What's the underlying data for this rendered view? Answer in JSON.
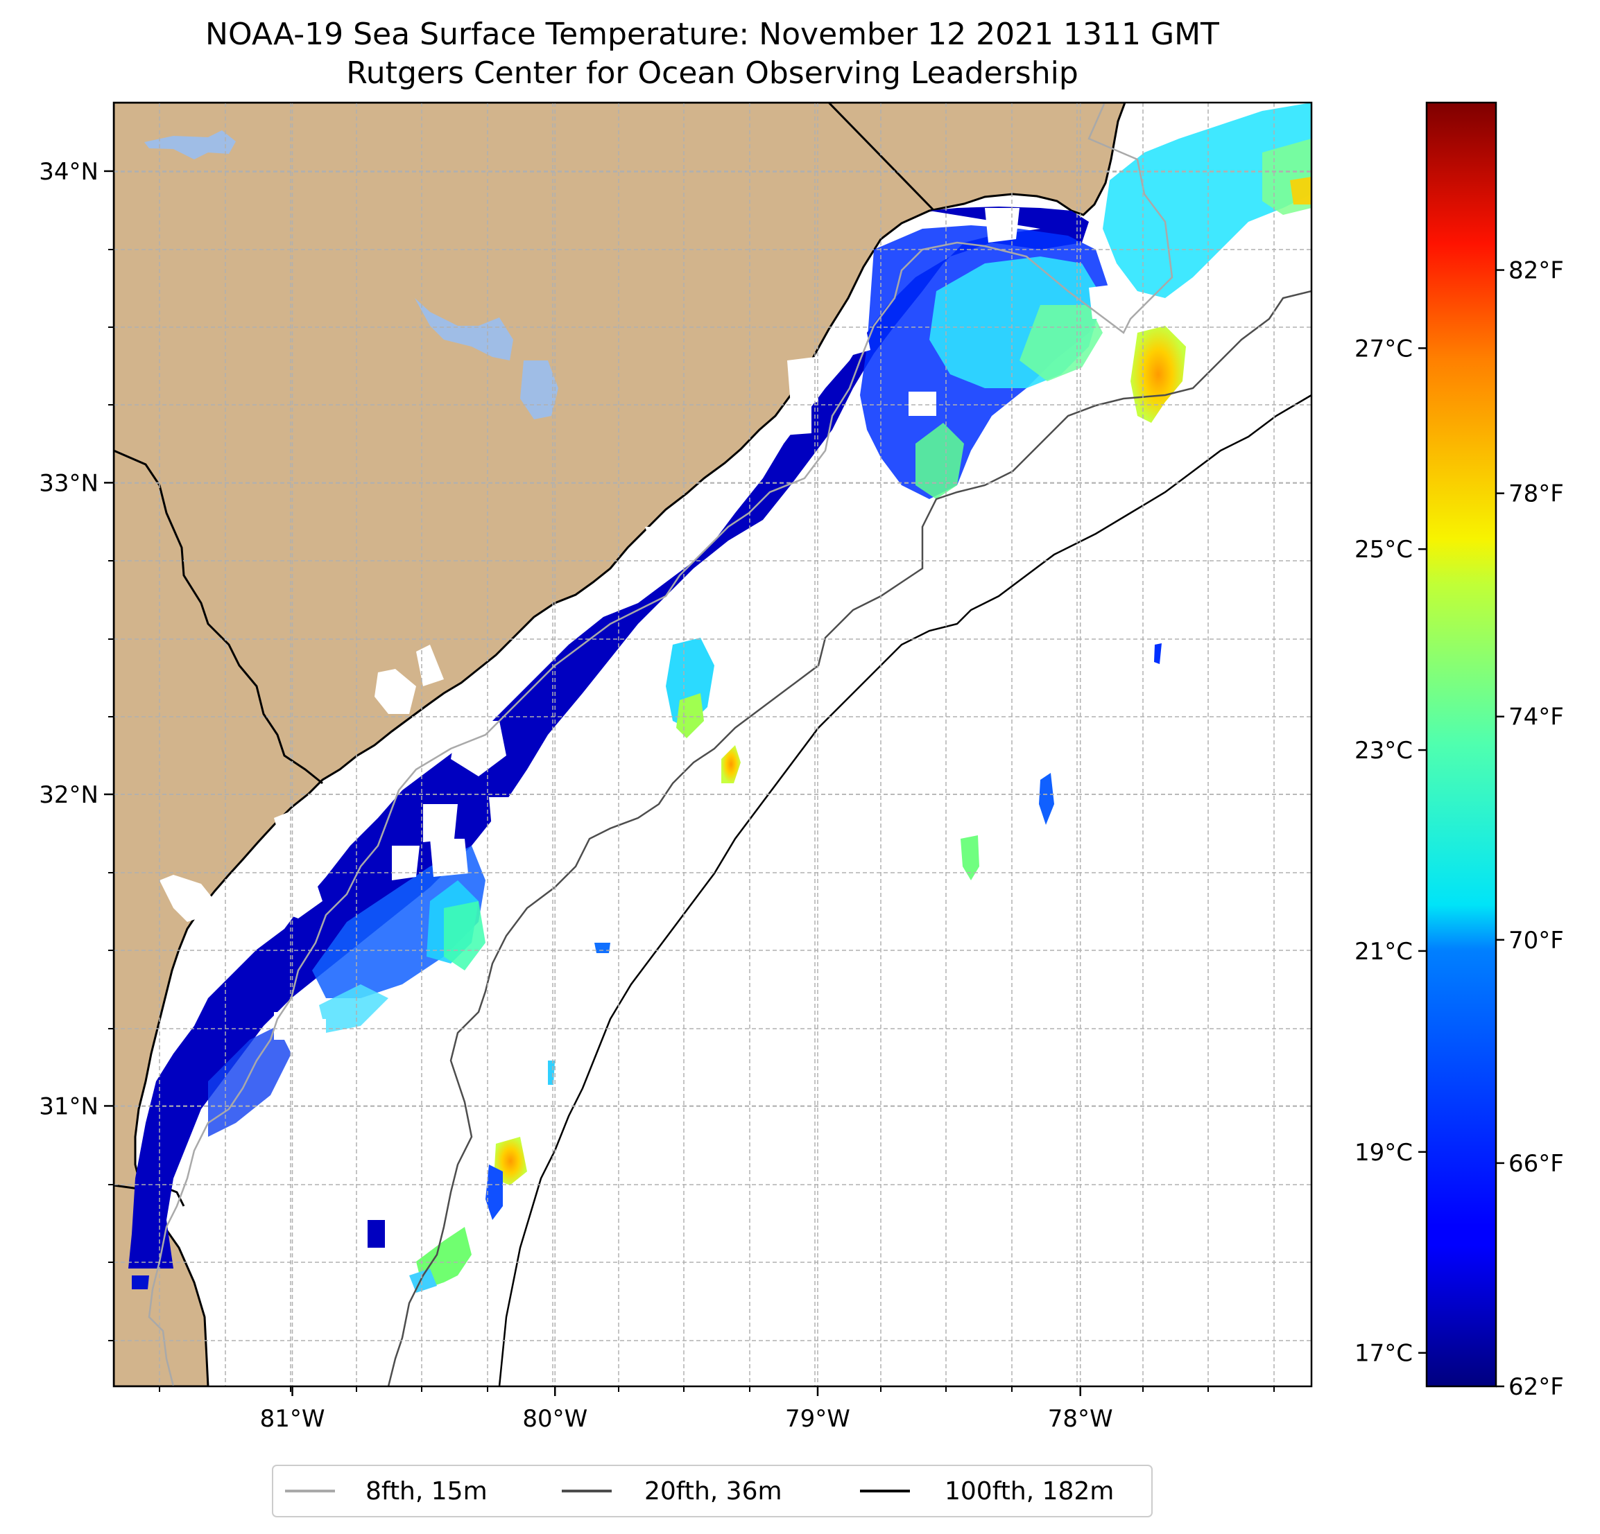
{
  "title": {
    "line1": "NOAA-19 Sea Surface Temperature: November 12 2021 1311 GMT",
    "line2": "Rutgers Center for Ocean Observing Leadership"
  },
  "map": {
    "lon_range": [
      -81.68,
      -77.12
    ],
    "lat_range": [
      30.1,
      34.22
    ],
    "lon_ticks": [
      {
        "value": -81,
        "label": "81°W"
      },
      {
        "value": -80,
        "label": "80°W"
      },
      {
        "value": -79,
        "label": "79°W"
      },
      {
        "value": -78,
        "label": "78°W"
      }
    ],
    "lat_ticks": [
      {
        "value": 34,
        "label": "34°N"
      },
      {
        "value": 33,
        "label": "33°N"
      },
      {
        "value": 32,
        "label": "32°N"
      },
      {
        "value": 31,
        "label": "31°N"
      }
    ],
    "colors": {
      "land": "#d2b48c",
      "lake": "#9fbde6",
      "iso8": "#a9a9a9",
      "iso20": "#4d4d4d",
      "iso100": "#000000",
      "grid": "#b0b0b0"
    }
  },
  "colorbar": {
    "fahrenheit_range": [
      62,
      85
    ],
    "celsius_ticks": [
      {
        "value": 17,
        "label": "17°C"
      },
      {
        "value": 19,
        "label": "19°C"
      },
      {
        "value": 21,
        "label": "21°C"
      },
      {
        "value": 23,
        "label": "23°C"
      },
      {
        "value": 25,
        "label": "25°C"
      },
      {
        "value": 27,
        "label": "27°C"
      }
    ],
    "fahrenheit_ticks": [
      {
        "value": 62,
        "label": "62°F"
      },
      {
        "value": 66,
        "label": "66°F"
      },
      {
        "value": 70,
        "label": "70°F"
      },
      {
        "value": 74,
        "label": "74°F"
      },
      {
        "value": 78,
        "label": "78°F"
      },
      {
        "value": 82,
        "label": "82°F"
      }
    ]
  },
  "legend": {
    "entries": [
      {
        "label": "8fth, 15m",
        "color": "#a9a9a9"
      },
      {
        "label": "20fth, 36m",
        "color": "#4d4d4d"
      },
      {
        "label": "100fth, 182m",
        "color": "#000000"
      }
    ]
  }
}
